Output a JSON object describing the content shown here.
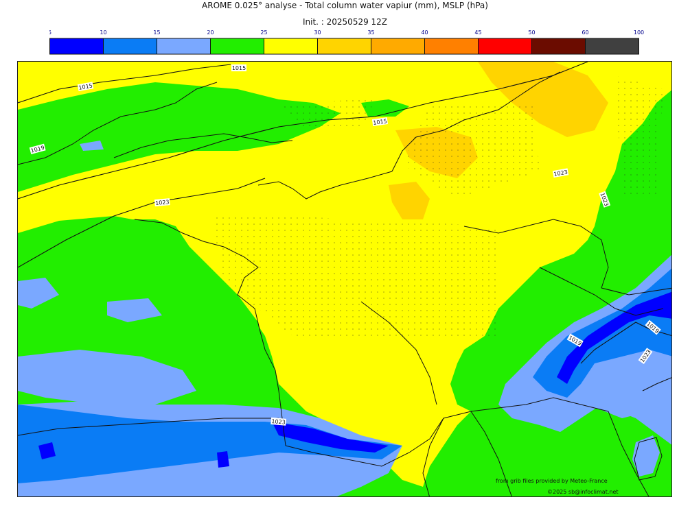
{
  "header": {
    "title": "AROME 0.025° analyse - Total column water vapiur (mm), MSLP (hPa)",
    "subtitle": "Init. : 20250529 12Z"
  },
  "legend": {
    "ticks": [
      "5",
      "10",
      "15",
      "20",
      "25",
      "30",
      "35",
      "40",
      "45",
      "50",
      "60",
      "100"
    ],
    "colors": [
      "#0000ff",
      "#0a7cf5",
      "#7aa8ff",
      "#22ee00",
      "#ffff00",
      "#ffd400",
      "#ffaa00",
      "#ff8000",
      "#ff0000",
      "#6b0c00",
      "#404040"
    ]
  },
  "map": {
    "isobars": [
      {
        "label": "1015"
      },
      {
        "label": "1015"
      },
      {
        "label": "1015"
      },
      {
        "label": "1019"
      },
      {
        "label": "1023"
      },
      {
        "label": "1023"
      },
      {
        "label": "1023"
      },
      {
        "label": "1023"
      },
      {
        "label": "1019"
      },
      {
        "label": "1019"
      },
      {
        "label": "1023"
      }
    ]
  },
  "credits": {
    "source": "from grib files provided by Meteo-France",
    "copyright": "©2025 sb@infoclimat.net"
  }
}
